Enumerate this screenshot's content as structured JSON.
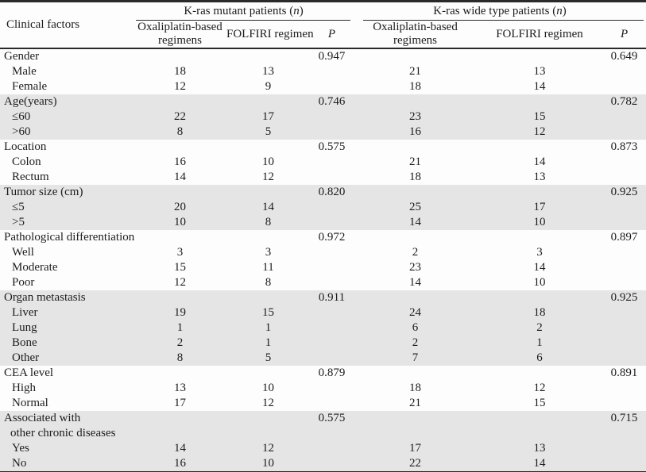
{
  "table": {
    "col1_header": "Clinical factors",
    "groups": {
      "mutant": {
        "pre": "K-ras mutant patients (",
        "n": "n",
        "post": ")"
      },
      "wide": {
        "pre": "K-ras wide type patients (",
        "n": "n",
        "post": ")"
      }
    },
    "subheaders": {
      "oxaliplatin": "Oxaliplatin-based regimens",
      "folfiri": "FOLFIRI regimen",
      "p": "P"
    },
    "sections": [
      {
        "label": "Gender",
        "p_mutant": "0.947",
        "p_wide": "0.649",
        "shaded": false,
        "rows": [
          {
            "label": "Male",
            "values": [
              "18",
              "13",
              "21",
              "13"
            ]
          },
          {
            "label": "Female",
            "values": [
              "12",
              "9",
              "18",
              "14"
            ]
          }
        ]
      },
      {
        "label": "Age(years)",
        "p_mutant": "0.746",
        "p_wide": "0.782",
        "shaded": true,
        "rows": [
          {
            "label": "≤60",
            "values": [
              "22",
              "17",
              "23",
              "15"
            ]
          },
          {
            "label": ">60",
            "values": [
              "8",
              "5",
              "16",
              "12"
            ]
          }
        ]
      },
      {
        "label": "Location",
        "p_mutant": "0.575",
        "p_wide": "0.873",
        "shaded": false,
        "rows": [
          {
            "label": "Colon",
            "values": [
              "16",
              "10",
              "21",
              "14"
            ]
          },
          {
            "label": "Rectum",
            "values": [
              "14",
              "12",
              "18",
              "13"
            ]
          }
        ]
      },
      {
        "label": "Tumor size (cm)",
        "p_mutant": "0.820",
        "p_wide": "0.925",
        "shaded": true,
        "rows": [
          {
            "label": "≤5",
            "values": [
              "20",
              "14",
              "25",
              "17"
            ]
          },
          {
            "label": ">5",
            "values": [
              "10",
              "8",
              "14",
              "10"
            ]
          }
        ]
      },
      {
        "label": "Pathological differentiation",
        "p_mutant": "0.972",
        "p_wide": "0.897",
        "shaded": false,
        "rows": [
          {
            "label": "Well",
            "values": [
              "3",
              "3",
              "2",
              "3"
            ]
          },
          {
            "label": "Moderate",
            "values": [
              "15",
              "11",
              "23",
              "14"
            ]
          },
          {
            "label": "Poor",
            "values": [
              "12",
              "8",
              "14",
              "10"
            ]
          }
        ]
      },
      {
        "label": "Organ metastasis",
        "p_mutant": "0.911",
        "p_wide": "0.925",
        "shaded": true,
        "rows": [
          {
            "label": "Liver",
            "values": [
              "19",
              "15",
              "24",
              "18"
            ]
          },
          {
            "label": "Lung",
            "values": [
              "1",
              "1",
              "6",
              "2"
            ]
          },
          {
            "label": "Bone",
            "values": [
              "2",
              "1",
              "2",
              "1"
            ]
          },
          {
            "label": "Other",
            "values": [
              "8",
              "5",
              "7",
              "6"
            ]
          }
        ]
      },
      {
        "label": "CEA level",
        "p_mutant": "0.879",
        "p_wide": "0.891",
        "shaded": false,
        "rows": [
          {
            "label": "High",
            "values": [
              "13",
              "10",
              "18",
              "12"
            ]
          },
          {
            "label": "Normal",
            "values": [
              "17",
              "12",
              "21",
              "15"
            ]
          }
        ]
      },
      {
        "label": "Associated with",
        "label2": "other chronic diseases",
        "p_mutant": "0.575",
        "p_wide": "0.715",
        "shaded": true,
        "rows": [
          {
            "label": "Yes",
            "values": [
              "14",
              "12",
              "17",
              "13"
            ]
          },
          {
            "label": "No",
            "values": [
              "16",
              "10",
              "22",
              "14"
            ]
          }
        ]
      }
    ],
    "colors": {
      "shaded_band": "#e5e5e5",
      "rule": "#2a2a2a",
      "text": "#1d1d1d"
    }
  }
}
